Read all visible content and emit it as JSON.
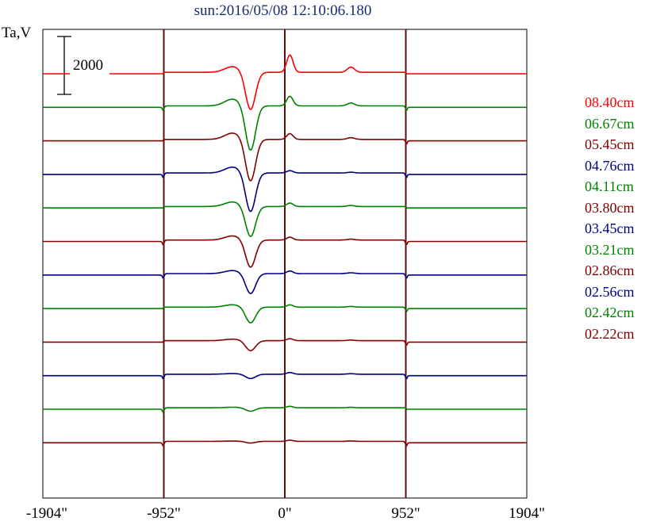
{
  "chart_data": {
    "type": "line",
    "title": "sun:2016/05/08 12:10:06.180",
    "ylabel": "Ta,V",
    "scale_bar_label": "2000",
    "x_ticks": [
      -1904,
      -952,
      0,
      952,
      1904
    ],
    "x_tick_labels": [
      "-1904\"",
      "-952\"",
      "0\"",
      "952\"",
      "1904\""
    ],
    "xlim": [
      -1904,
      1904
    ],
    "grid_x": [
      -952,
      0,
      952
    ],
    "dip_center": -270,
    "series": [
      {
        "name": "08.40cm",
        "color": "#ff0000",
        "dip_depth": 1300,
        "limb_bump": 600
      },
      {
        "name": "06.67cm",
        "color": "#008000",
        "dip_depth": 1550,
        "limb_bump": 330
      },
      {
        "name": "05.45cm",
        "color": "#800000",
        "dip_depth": 1450,
        "limb_bump": 200
      },
      {
        "name": "04.76cm",
        "color": "#000080",
        "dip_depth": 1350,
        "limb_bump": 80
      },
      {
        "name": "04.11cm",
        "color": "#008000",
        "dip_depth": 1050,
        "limb_bump": 120
      },
      {
        "name": "03.80cm",
        "color": "#800000",
        "dip_depth": 950,
        "limb_bump": 100
      },
      {
        "name": "03.45cm",
        "color": "#000080",
        "dip_depth": 700,
        "limb_bump": 90
      },
      {
        "name": "03.21cm",
        "color": "#008000",
        "dip_depth": 550,
        "limb_bump": 80
      },
      {
        "name": "02.86cm",
        "color": "#800000",
        "dip_depth": 350,
        "limb_bump": 70
      },
      {
        "name": "02.56cm",
        "color": "#000080",
        "dip_depth": 150,
        "limb_bump": 60
      },
      {
        "name": "02.42cm",
        "color": "#008000",
        "dip_depth": 120,
        "limb_bump": 50
      },
      {
        "name": "02.22cm",
        "color": "#800000",
        "dip_depth": 60,
        "limb_bump": 40
      }
    ]
  }
}
